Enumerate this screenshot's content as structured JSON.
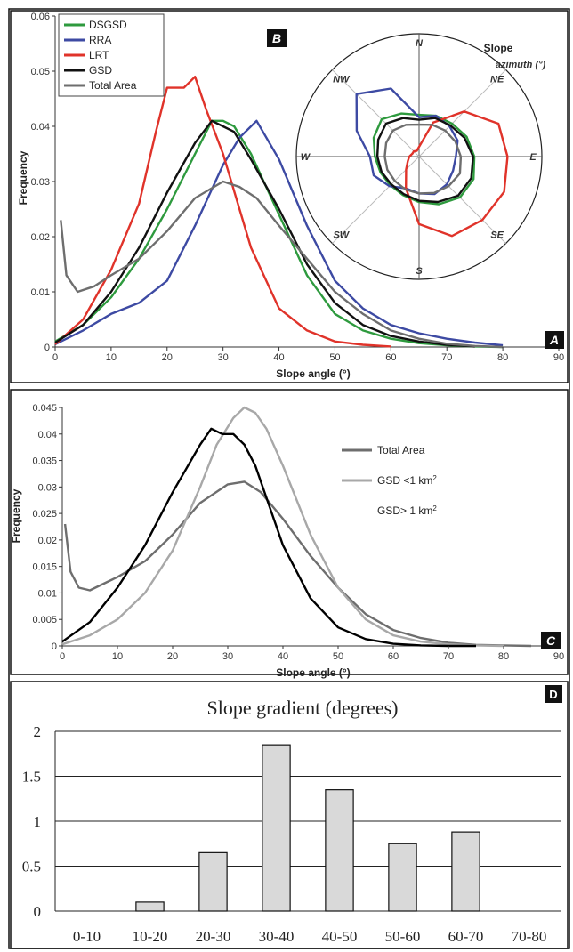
{
  "colors": {
    "DSGSD": "#2e9a3e",
    "RRA": "#3d4aa3",
    "LRT": "#e0332a",
    "GSD": "#111111",
    "Total Area": "#6e6e6e",
    "GSD <1 km2": "#a8a8a8",
    "bar_fill": "#d9d9d9"
  },
  "chart_data": [
    {
      "type": "line",
      "panel_letter": "A",
      "xlabel": "Slope angle (°)",
      "ylabel": "Frequency",
      "xlim": [
        0,
        90
      ],
      "ylim": [
        0,
        0.06
      ],
      "x_ticks": [
        "0",
        "10",
        "20",
        "30",
        "40",
        "50",
        "60",
        "70",
        "80",
        "90"
      ],
      "y_ticks": [
        "0",
        "0.01",
        "0.02",
        "0.03",
        "0.04",
        "0.05",
        "0.06"
      ],
      "legend_position": "top-left",
      "series": [
        {
          "name": "DSGSD",
          "x": [
            0,
            5,
            10,
            15,
            20,
            25,
            28,
            30,
            32,
            35,
            40,
            45,
            50,
            55,
            60,
            65,
            70,
            75,
            80
          ],
          "y": [
            0.001,
            0.004,
            0.009,
            0.016,
            0.025,
            0.035,
            0.041,
            0.041,
            0.04,
            0.035,
            0.024,
            0.013,
            0.006,
            0.003,
            0.0015,
            0.0007,
            0.0003,
            0.0001,
            0
          ]
        },
        {
          "name": "RRA",
          "x": [
            0,
            5,
            10,
            15,
            20,
            25,
            30,
            33,
            36,
            40,
            45,
            50,
            55,
            60,
            65,
            70,
            75,
            80
          ],
          "y": [
            0.0005,
            0.003,
            0.006,
            0.008,
            0.012,
            0.022,
            0.033,
            0.038,
            0.041,
            0.034,
            0.022,
            0.012,
            0.007,
            0.004,
            0.0025,
            0.0015,
            0.0008,
            0.0003
          ]
        },
        {
          "name": "LRT",
          "x": [
            0,
            5,
            10,
            15,
            18,
            20,
            23,
            25,
            27,
            30,
            35,
            40,
            45,
            50,
            55,
            60
          ],
          "y": [
            0.0005,
            0.005,
            0.014,
            0.026,
            0.039,
            0.047,
            0.047,
            0.049,
            0.043,
            0.035,
            0.018,
            0.007,
            0.003,
            0.001,
            0.0004,
            0.0001
          ]
        },
        {
          "name": "GSD",
          "x": [
            0,
            5,
            10,
            15,
            20,
            25,
            28,
            30,
            32,
            35,
            40,
            45,
            50,
            55,
            60,
            65,
            70,
            75
          ],
          "y": [
            0.0008,
            0.004,
            0.01,
            0.018,
            0.028,
            0.037,
            0.041,
            0.04,
            0.039,
            0.034,
            0.025,
            0.015,
            0.008,
            0.004,
            0.002,
            0.001,
            0.0004,
            0.0001
          ]
        },
        {
          "name": "Total Area",
          "x": [
            1,
            2,
            4,
            7,
            10,
            15,
            20,
            25,
            30,
            33,
            36,
            40,
            45,
            50,
            55,
            60,
            65,
            70,
            75,
            80
          ],
          "y": [
            0.023,
            0.013,
            0.01,
            0.011,
            0.013,
            0.016,
            0.021,
            0.027,
            0.03,
            0.029,
            0.027,
            0.022,
            0.016,
            0.01,
            0.006,
            0.003,
            0.0015,
            0.0006,
            0.0002,
            0
          ]
        }
      ]
    },
    {
      "type": "polar-line",
      "panel_letter": "B",
      "title": "Slope azimuth (°)",
      "directions": [
        "N",
        "NE",
        "E",
        "SE",
        "S",
        "SW",
        "W",
        "NW"
      ],
      "angles_deg": [
        0,
        22.5,
        45,
        67.5,
        90,
        112.5,
        135,
        157.5,
        180,
        202.5,
        225,
        247.5,
        270,
        292.5,
        315,
        337.5
      ],
      "series": [
        {
          "name": "DSGSD",
          "r": [
            0.34,
            0.36,
            0.38,
            0.42,
            0.45,
            0.48,
            0.47,
            0.42,
            0.37,
            0.34,
            0.33,
            0.34,
            0.36,
            0.4,
            0.43,
            0.38
          ]
        },
        {
          "name": "RRA",
          "r": [
            0.32,
            0.36,
            0.35,
            0.34,
            0.3,
            0.3,
            0.32,
            0.33,
            0.3,
            0.28,
            0.34,
            0.4,
            0.4,
            0.55,
            0.72,
            0.6
          ]
        },
        {
          "name": "LRT",
          "r": [
            0.08,
            0.3,
            0.52,
            0.7,
            0.72,
            0.75,
            0.73,
            0.7,
            0.55,
            0.28,
            0.15,
            0.1,
            0.08,
            0.06,
            0.06,
            0.05
          ]
        },
        {
          "name": "GSD",
          "r": [
            0.3,
            0.34,
            0.36,
            0.4,
            0.44,
            0.46,
            0.45,
            0.4,
            0.36,
            0.33,
            0.32,
            0.33,
            0.34,
            0.36,
            0.38,
            0.34
          ]
        },
        {
          "name": "Total Area",
          "r": [
            0.26,
            0.28,
            0.3,
            0.32,
            0.34,
            0.36,
            0.34,
            0.32,
            0.3,
            0.29,
            0.28,
            0.28,
            0.28,
            0.29,
            0.3,
            0.28
          ]
        }
      ]
    },
    {
      "type": "line",
      "panel_letter": "C",
      "xlabel": "Slope angle (°)",
      "ylabel": "Frequency",
      "xlim": [
        0,
        90
      ],
      "ylim": [
        0,
        0.045
      ],
      "x_ticks": [
        "0",
        "10",
        "20",
        "30",
        "40",
        "50",
        "60",
        "70",
        "80",
        "90"
      ],
      "y_ticks": [
        "0",
        "0.005",
        "0.01",
        "0.015",
        "0.02",
        "0.025",
        "0.03",
        "0.035",
        "0.04",
        "0.045"
      ],
      "legend_position": "right",
      "series": [
        {
          "name": "Total Area",
          "x": [
            0.5,
            1.5,
            3,
            5,
            8,
            10,
            15,
            20,
            25,
            30,
            33,
            36,
            40,
            45,
            50,
            55,
            60,
            65,
            70,
            75,
            80,
            85
          ],
          "y": [
            0.023,
            0.014,
            0.011,
            0.0105,
            0.012,
            0.013,
            0.016,
            0.021,
            0.027,
            0.0305,
            0.031,
            0.029,
            0.024,
            0.017,
            0.011,
            0.006,
            0.003,
            0.0015,
            0.0006,
            0.0002,
            0.0001,
            0
          ]
        },
        {
          "name": "GSD <1 km2",
          "x": [
            0,
            5,
            10,
            15,
            20,
            25,
            28,
            31,
            33,
            35,
            37,
            40,
            45,
            50,
            55,
            60,
            65,
            70,
            75,
            80
          ],
          "y": [
            0.0003,
            0.002,
            0.005,
            0.01,
            0.018,
            0.03,
            0.038,
            0.043,
            0.045,
            0.044,
            0.041,
            0.034,
            0.021,
            0.011,
            0.005,
            0.002,
            0.0008,
            0.0003,
            0.0001,
            0
          ]
        },
        {
          "name": "GSD> 1 km2",
          "x": [
            0,
            5,
            10,
            15,
            20,
            25,
            27,
            29,
            31,
            33,
            35,
            38,
            40,
            45,
            50,
            55,
            60,
            65,
            70,
            75
          ],
          "y": [
            0.0008,
            0.0045,
            0.011,
            0.019,
            0.029,
            0.038,
            0.041,
            0.04,
            0.04,
            0.038,
            0.034,
            0.025,
            0.019,
            0.009,
            0.0035,
            0.0013,
            0.0004,
            0.0001,
            0,
            0
          ]
        }
      ]
    },
    {
      "type": "bar",
      "panel_letter": "D",
      "title": "Slope gradient (degrees)",
      "categories": [
        "0-10",
        "10-20",
        "20-30",
        "30-40",
        "40-50",
        "50-60",
        "60-70",
        "70-80"
      ],
      "values": [
        0,
        0.1,
        0.65,
        1.85,
        1.35,
        0.75,
        0.88,
        0
      ],
      "ylim": [
        0,
        2
      ],
      "y_ticks": [
        "0",
        "0.5",
        "1",
        "1.5",
        "2"
      ]
    }
  ]
}
